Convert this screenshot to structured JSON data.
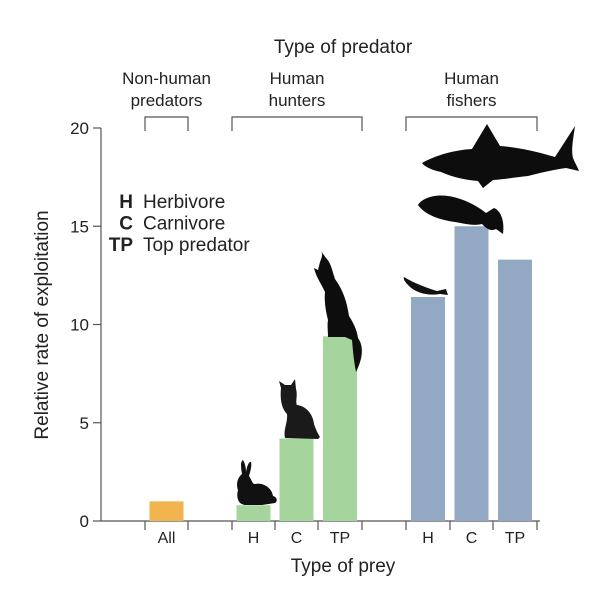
{
  "chart_data": {
    "type": "bar",
    "title": "Type of predator",
    "xlabel": "Type of prey",
    "ylabel": "Relative rate of exploitation",
    "ylim": [
      0,
      20
    ],
    "yticks": [
      0,
      5,
      10,
      15,
      20
    ],
    "grid": false,
    "groups": [
      {
        "label_line1": "Non-human",
        "label_line2": "predators",
        "color": "#f2b44e",
        "categories": [
          "All"
        ],
        "values": [
          1.0
        ]
      },
      {
        "label_line1": "Human",
        "label_line2": "hunters",
        "color": "#a5d59c",
        "categories": [
          "H",
          "C",
          "TP"
        ],
        "values": [
          0.8,
          4.2,
          9.4
        ]
      },
      {
        "label_line1": "Human",
        "label_line2": "fishers",
        "color": "#93a9c3",
        "categories": [
          "H",
          "C",
          "TP"
        ],
        "values": [
          11.4,
          15.0,
          13.3
        ]
      }
    ],
    "legend": [
      {
        "abbr": "H",
        "text": "Herbivore"
      },
      {
        "abbr": "C",
        "text": "Carnivore"
      },
      {
        "abbr": "TP",
        "text": "Top predator"
      }
    ],
    "icons": [
      "rabbit-silhouette",
      "cat-silhouette",
      "wolf-silhouette",
      "small-fish-silhouette",
      "grouper-silhouette",
      "shark-silhouette"
    ]
  }
}
